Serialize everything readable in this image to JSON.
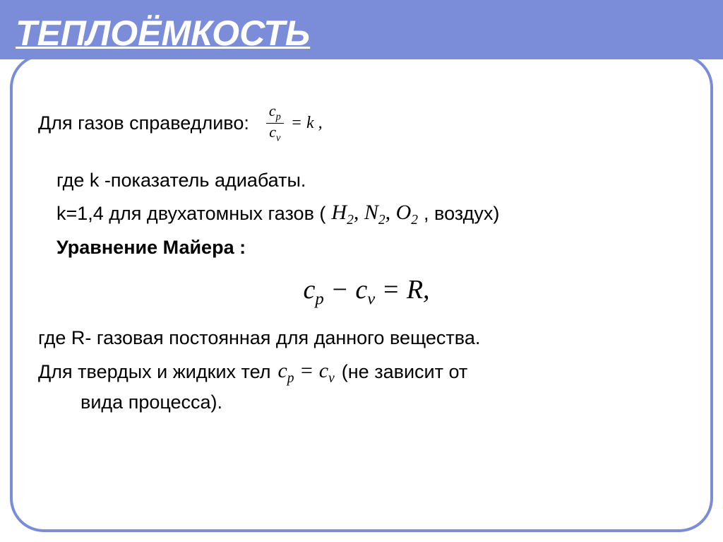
{
  "slide": {
    "title": "ТЕПЛОЁМКОСТЬ",
    "line1_text": "Для газов справедливо:",
    "eq_k": {
      "num": "c",
      "num_sub": "p",
      "den": "c",
      "den_sub": "v",
      "rhs": "= k ,"
    },
    "line2_text": "где k -показатель адиабаты.",
    "line3_prefix": "k=1,4 для двухатомных газов  (",
    "line3_gases": {
      "g1": "H",
      "s1": "2",
      "g2": "N",
      "s2": "2",
      "g3": "O",
      "s3": "2"
    },
    "line3_suffix": " , воздух)",
    "line4_text": "Уравнение  Майера :",
    "eq_mayer": {
      "c1": "c",
      "sub1": "p",
      "minus": " − ",
      "c2": "c",
      "sub2": "v",
      "eq": " = ",
      "R": "R",
      "comma": ","
    },
    "line5_text": "где  R- газовая постоянная для данного вещества.",
    "line6_prefix": "Для твердых и жидких тел  ",
    "eq_cpcv": {
      "c1": "c",
      "sub1": "p",
      "eq": " = ",
      "c2": "c",
      "sub2": "v"
    },
    "line6_suffix": "   (не зависит от",
    "line7_text": "вида процесса).",
    "colors": {
      "header_bg": "#7b8dd8",
      "title_color": "#ffffff",
      "border_color": "#7b8dd8",
      "text_color": "#000000",
      "background": "#ffffff"
    },
    "fontsize": {
      "title": 50,
      "body": 27,
      "eq_large": 38,
      "eq_medium": 30,
      "frac": 22
    }
  }
}
